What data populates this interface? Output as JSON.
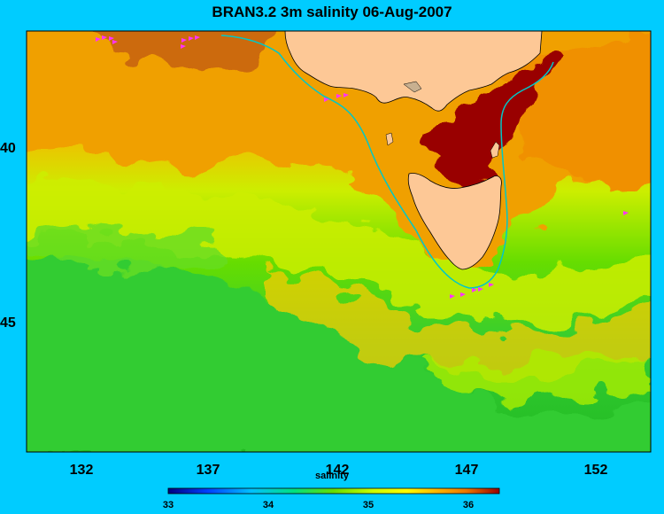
{
  "title": "BRAN3.2 3m salinity 06-Aug-2007",
  "map": {
    "x_ticks": [
      "132",
      "137",
      "142",
      "147",
      "152"
    ],
    "y_ticks": [
      "40",
      "45"
    ],
    "colors": {
      "land": "#fdc896",
      "coast_line": "#00c8c8",
      "float_markers": "#ff33ff",
      "frame_background": "#00ccff"
    }
  },
  "colorbar": {
    "label": "salinity",
    "ticks": [
      "33",
      "34",
      "35",
      "36"
    ],
    "colormap": [
      "#000080",
      "#0040ff",
      "#00c0ff",
      "#00e080",
      "#33cc33",
      "#99ee00",
      "#ffff00",
      "#ffb000",
      "#ee7700",
      "#990000"
    ]
  }
}
